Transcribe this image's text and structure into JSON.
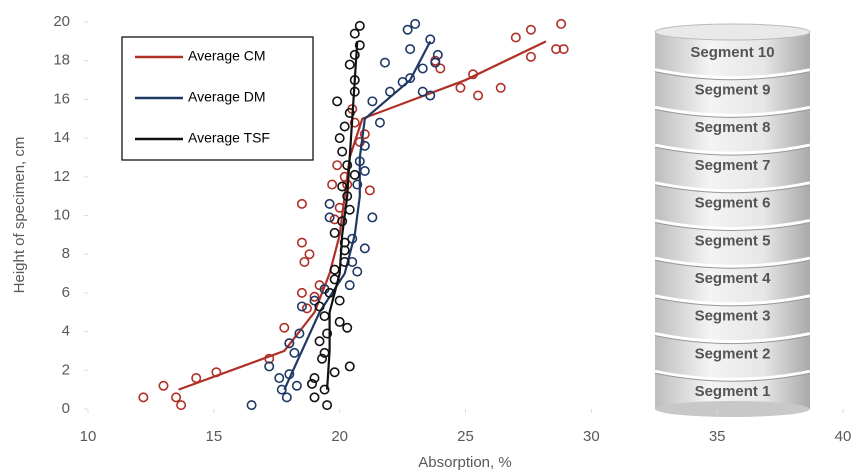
{
  "chart_data": {
    "type": "scatter",
    "x_label": "Absorption, %",
    "y_label": "Height of specimen, cm",
    "xlim": [
      10,
      40
    ],
    "xticks": [
      10,
      15,
      20,
      25,
      30,
      35,
      40
    ],
    "ylim": [
      0,
      20
    ],
    "yticks": [
      0,
      2,
      4,
      6,
      8,
      10,
      12,
      14,
      16,
      18,
      20
    ],
    "grid": false,
    "legend": "upper-left",
    "segments": [
      "Segment 1",
      "Segment 2",
      "Segment 3",
      "Segment 4",
      "Segment 5",
      "Segment 6",
      "Segment 7",
      "Segment 8",
      "Segment 9",
      "Segment 10"
    ],
    "series": [
      {
        "name": "Average CM",
        "color": "#b03028",
        "x": [
          13.6,
          17.8,
          19.0,
          19.6,
          20.0,
          20.2,
          20.4,
          20.9,
          25.0,
          28.2
        ],
        "values": [
          1,
          3,
          5,
          7,
          9,
          11,
          13,
          15,
          17,
          19
        ],
        "points": {
          "x": [
            12.2,
            13.0,
            13.5,
            13.7,
            14.3,
            15.1,
            17.2,
            17.8,
            18.0,
            18.5,
            18.7,
            19.0,
            19.2,
            18.6,
            18.8,
            18.5,
            18.5,
            19.8,
            20.0,
            20.3,
            19.7,
            19.9,
            20.2,
            21.2,
            21.0,
            20.6,
            20.5,
            20.8,
            24.8,
            25.5,
            26.4,
            25.3,
            24.0,
            23.8,
            27.0,
            27.6,
            27.6,
            28.6,
            28.9,
            28.8
          ],
          "y": [
            0.6,
            1.2,
            0.6,
            0.2,
            1.6,
            1.9,
            2.6,
            4.2,
            3.4,
            6.0,
            5.2,
            5.8,
            6.4,
            7.6,
            8.0,
            8.6,
            10.6,
            9.8,
            10.4,
            11.6,
            11.6,
            12.6,
            12.0,
            11.3,
            14.2,
            14.8,
            15.5,
            13.8,
            16.6,
            16.2,
            16.6,
            17.3,
            17.6,
            18.0,
            19.2,
            18.2,
            19.6,
            18.6,
            18.6,
            19.9
          ]
        }
      },
      {
        "name": "Average DM",
        "color": "#1f3864",
        "x": [
          17.8,
          18.5,
          19.2,
          20.2,
          20.6,
          20.8,
          20.8,
          21.0,
          22.8,
          23.6
        ],
        "values": [
          1,
          3,
          5,
          7,
          9,
          11,
          13,
          15,
          17,
          19
        ],
        "points": {
          "x": [
            16.5,
            17.9,
            17.7,
            18.0,
            18.3,
            17.6,
            17.2,
            18.2,
            18.0,
            18.4,
            18.5,
            19.0,
            19.4,
            20.4,
            20.7,
            20.5,
            21.0,
            20.5,
            19.6,
            19.6,
            20.7,
            21.0,
            21.3,
            20.8,
            21.0,
            21.3,
            21.6,
            22.0,
            21.8,
            22.5,
            22.8,
            23.3,
            23.6,
            23.3,
            23.8,
            23.9,
            22.8,
            23.6,
            22.7,
            23.0
          ],
          "y": [
            0.2,
            0.6,
            1.0,
            1.8,
            1.2,
            1.6,
            2.2,
            2.9,
            3.4,
            3.9,
            5.3,
            5.6,
            6.2,
            6.4,
            7.1,
            7.6,
            8.3,
            8.8,
            10.6,
            9.9,
            11.6,
            12.3,
            9.9,
            12.8,
            13.6,
            15.9,
            14.8,
            16.4,
            17.9,
            16.9,
            17.1,
            16.4,
            16.2,
            17.6,
            17.9,
            18.3,
            18.6,
            19.1,
            19.6,
            19.9
          ]
        }
      },
      {
        "name": "Average TSF",
        "color": "#111111",
        "x": [
          19.5,
          19.6,
          19.6,
          20.0,
          20.1,
          20.3,
          20.4,
          20.5,
          20.6,
          20.7
        ],
        "values": [
          1,
          3,
          5,
          7,
          9,
          11,
          13,
          15,
          17,
          19
        ],
        "points": {
          "x": [
            19.5,
            19.0,
            19.4,
            18.9,
            19.0,
            19.8,
            20.4,
            19.3,
            19.4,
            19.2,
            19.5,
            20.0,
            20.3,
            19.4,
            19.2,
            19.6,
            20.0,
            19.8,
            19.8,
            20.2,
            20.2,
            20.2,
            19.8,
            20.1,
            20.4,
            20.3,
            20.1,
            20.6,
            20.3,
            20.1,
            20.0,
            20.2,
            20.4,
            19.9,
            20.6,
            20.6,
            20.4,
            20.6,
            20.8,
            20.6,
            20.8
          ],
          "y": [
            0.2,
            0.6,
            1.0,
            1.3,
            1.6,
            1.9,
            2.2,
            2.6,
            2.9,
            3.5,
            3.9,
            4.5,
            4.2,
            4.8,
            5.3,
            6.0,
            5.6,
            6.7,
            7.2,
            7.6,
            8.2,
            8.6,
            9.1,
            9.7,
            10.3,
            11.0,
            11.5,
            12.1,
            12.6,
            13.3,
            14.0,
            14.6,
            15.3,
            15.9,
            16.4,
            17.0,
            17.8,
            18.3,
            18.8,
            19.4,
            19.8
          ]
        }
      }
    ]
  }
}
